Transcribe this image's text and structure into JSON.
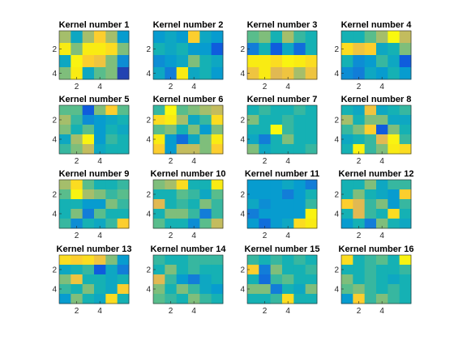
{
  "chart_data": {
    "type": "heatmap",
    "colormap": "parula",
    "clim": [
      0,
      1
    ],
    "grid": false,
    "rows": 4,
    "cols": 4,
    "x_ticks": [
      2,
      4
    ],
    "y_ticks": [
      2,
      4
    ],
    "panels": [
      {
        "title": "Kernel number 1",
        "values": [
          [
            0.6,
            0.35,
            0.6,
            0.8,
            0.6,
            0.3
          ],
          [
            0.9,
            0.55,
            0.9,
            0.9,
            0.85,
            0.55
          ],
          [
            0.35,
            0.95,
            0.8,
            0.75,
            0.55,
            0.25
          ],
          [
            0.55,
            0.9,
            0.35,
            0.5,
            0.55,
            0.05
          ]
        ]
      },
      {
        "title": "Kernel number 2",
        "values": [
          [
            0.3,
            0.35,
            0.3,
            0.8,
            0.35,
            0.3
          ],
          [
            0.4,
            0.35,
            0.4,
            0.3,
            0.3,
            0.1
          ],
          [
            0.25,
            0.3,
            0.35,
            0.55,
            0.4,
            0.35
          ],
          [
            0.35,
            0.2,
            0.9,
            0.35,
            0.4,
            0.3
          ]
        ]
      },
      {
        "title": "Kernel number 3",
        "values": [
          [
            0.5,
            0.55,
            0.4,
            0.6,
            0.45,
            0.4
          ],
          [
            0.2,
            0.4,
            0.1,
            0.35,
            0.15,
            0.4
          ],
          [
            0.9,
            0.9,
            0.85,
            0.95,
            0.9,
            0.85
          ],
          [
            0.75,
            0.9,
            0.7,
            0.75,
            0.6,
            0.75
          ]
        ]
      },
      {
        "title": "Kernel number 4",
        "values": [
          [
            0.4,
            0.4,
            0.5,
            0.6,
            0.98,
            0.65
          ],
          [
            0.85,
            0.75,
            0.8,
            0.35,
            0.4,
            0.55
          ],
          [
            0.4,
            0.25,
            0.3,
            0.45,
            0.35,
            0.1
          ],
          [
            0.25,
            0.2,
            0.35,
            0.3,
            0.4,
            0.3
          ]
        ]
      },
      {
        "title": "Kernel number 5",
        "values": [
          [
            0.5,
            0.5,
            0.1,
            0.55,
            0.8,
            0.5
          ],
          [
            0.6,
            0.45,
            0.25,
            0.3,
            0.35,
            0.4
          ],
          [
            0.55,
            0.4,
            0.5,
            0.3,
            0.4,
            0.35
          ],
          [
            0.35,
            0.6,
            0.95,
            0.3,
            0.45,
            0.4
          ],
          [
            0.45,
            0.55,
            0.65,
            0.35,
            0.4,
            0.4
          ]
        ]
      },
      {
        "title": "Kernel number 6",
        "values": [
          [
            0.45,
            0.98,
            0.5,
            0.55,
            0.6,
            0.65
          ],
          [
            0.85,
            0.9,
            0.6,
            0.35,
            0.45,
            0.85
          ],
          [
            0.5,
            0.55,
            0.4,
            0.55,
            0.3,
            0.55
          ],
          [
            0.9,
            0.3,
            0.15,
            0.35,
            0.55,
            0.9
          ],
          [
            0.8,
            0.3,
            0.65,
            0.65,
            0.55,
            0.8
          ]
        ]
      },
      {
        "title": "Kernel number 7",
        "values": [
          [
            0.4,
            0.45,
            0.4,
            0.4,
            0.45,
            0.4
          ],
          [
            0.55,
            0.4,
            0.4,
            0.45,
            0.4,
            0.4
          ],
          [
            0.4,
            0.4,
            0.98,
            0.45,
            0.4,
            0.4
          ],
          [
            0.35,
            0.2,
            0.4,
            0.55,
            0.4,
            0.4
          ],
          [
            0.55,
            0.35,
            0.4,
            0.4,
            0.4,
            0.45
          ]
        ]
      },
      {
        "title": "Kernel number 8",
        "values": [
          [
            0.4,
            0.35,
            0.75,
            0.35,
            0.4,
            0.45
          ],
          [
            0.6,
            0.4,
            0.55,
            0.55,
            0.35,
            0.35
          ],
          [
            0.45,
            0.55,
            0.8,
            0.1,
            0.55,
            0.4
          ],
          [
            0.35,
            0.4,
            0.45,
            0.7,
            0.95,
            0.45
          ],
          [
            0.4,
            0.95,
            0.45,
            0.55,
            0.9,
            0.85
          ]
        ]
      },
      {
        "title": "Kernel number 9",
        "values": [
          [
            0.6,
            0.85,
            0.5,
            0.4,
            0.4,
            0.45
          ],
          [
            0.5,
            0.95,
            0.6,
            0.55,
            0.45,
            0.5
          ],
          [
            0.4,
            0.4,
            0.3,
            0.3,
            0.55,
            0.45
          ],
          [
            0.4,
            0.55,
            0.2,
            0.5,
            0.4,
            0.4
          ],
          [
            0.45,
            0.25,
            0.4,
            0.35,
            0.45,
            0.8
          ]
        ]
      },
      {
        "title": "Kernel number 10",
        "values": [
          [
            0.55,
            0.6,
            0.85,
            0.4,
            0.4,
            0.9
          ],
          [
            0.4,
            0.4,
            0.5,
            0.45,
            0.35,
            0.5
          ],
          [
            0.7,
            0.4,
            0.45,
            0.4,
            0.55,
            0.45
          ],
          [
            0.4,
            0.55,
            0.55,
            0.45,
            0.2,
            0.45
          ],
          [
            0.5,
            0.4,
            0.4,
            0.25,
            0.5,
            0.65
          ]
        ]
      },
      {
        "title": "Kernel number 11",
        "values": [
          [
            0.3,
            0.3,
            0.3,
            0.35,
            0.3,
            0.2
          ],
          [
            0.3,
            0.3,
            0.3,
            0.2,
            0.3,
            0.4
          ],
          [
            0.35,
            0.25,
            0.3,
            0.3,
            0.3,
            0.45
          ],
          [
            0.2,
            0.3,
            0.3,
            0.3,
            0.3,
            0.95
          ],
          [
            0.3,
            0.15,
            0.3,
            0.35,
            0.85,
            0.9
          ]
        ]
      },
      {
        "title": "Kernel number 12",
        "values": [
          [
            0.4,
            0.4,
            0.55,
            0.35,
            0.45,
            0.45
          ],
          [
            0.4,
            0.55,
            0.4,
            0.35,
            0.3,
            0.8
          ],
          [
            0.8,
            0.7,
            0.45,
            0.55,
            0.3,
            0.45
          ],
          [
            0.4,
            0.7,
            0.45,
            0.4,
            0.85,
            0.4
          ],
          [
            0.3,
            0.4,
            0.2,
            0.55,
            0.4,
            0.35
          ]
        ]
      },
      {
        "title": "Kernel number 13",
        "values": [
          [
            0.85,
            0.8,
            0.85,
            0.75,
            0.55,
            0.3
          ],
          [
            0.35,
            0.4,
            0.45,
            0.1,
            0.35,
            0.2
          ],
          [
            0.55,
            0.75,
            0.4,
            0.4,
            0.35,
            0.4
          ],
          [
            0.45,
            0.4,
            0.55,
            0.4,
            0.35,
            0.8
          ],
          [
            0.3,
            0.55,
            0.4,
            0.35,
            0.85,
            0.4
          ]
        ]
      },
      {
        "title": "Kernel number 14",
        "values": [
          [
            0.45,
            0.4,
            0.4,
            0.45,
            0.45,
            0.45
          ],
          [
            0.4,
            0.55,
            0.4,
            0.45,
            0.4,
            0.4
          ],
          [
            0.7,
            0.45,
            0.3,
            0.2,
            0.35,
            0.4
          ],
          [
            0.55,
            0.4,
            0.55,
            0.45,
            0.35,
            0.3
          ],
          [
            0.5,
            0.45,
            0.4,
            0.55,
            0.45,
            0.4
          ]
        ]
      },
      {
        "title": "Kernel number 15",
        "values": [
          [
            0.45,
            0.4,
            0.45,
            0.4,
            0.45,
            0.4
          ],
          [
            0.8,
            0.2,
            0.55,
            0.4,
            0.4,
            0.45
          ],
          [
            0.4,
            0.15,
            0.45,
            0.5,
            0.4,
            0.4
          ],
          [
            0.55,
            0.55,
            0.2,
            0.4,
            0.35,
            0.55
          ],
          [
            0.4,
            0.4,
            0.45,
            0.85,
            0.4,
            0.4
          ]
        ]
      },
      {
        "title": "Kernel number 16",
        "values": [
          [
            0.85,
            0.4,
            0.45,
            0.5,
            0.4,
            0.95
          ],
          [
            0.4,
            0.4,
            0.45,
            0.4,
            0.4,
            0.45
          ],
          [
            0.55,
            0.4,
            0.45,
            0.4,
            0.35,
            0.4
          ],
          [
            0.5,
            0.55,
            0.45,
            0.4,
            0.45,
            0.4
          ],
          [
            0.3,
            0.8,
            0.45,
            0.55,
            0.45,
            0.4
          ]
        ]
      }
    ]
  }
}
